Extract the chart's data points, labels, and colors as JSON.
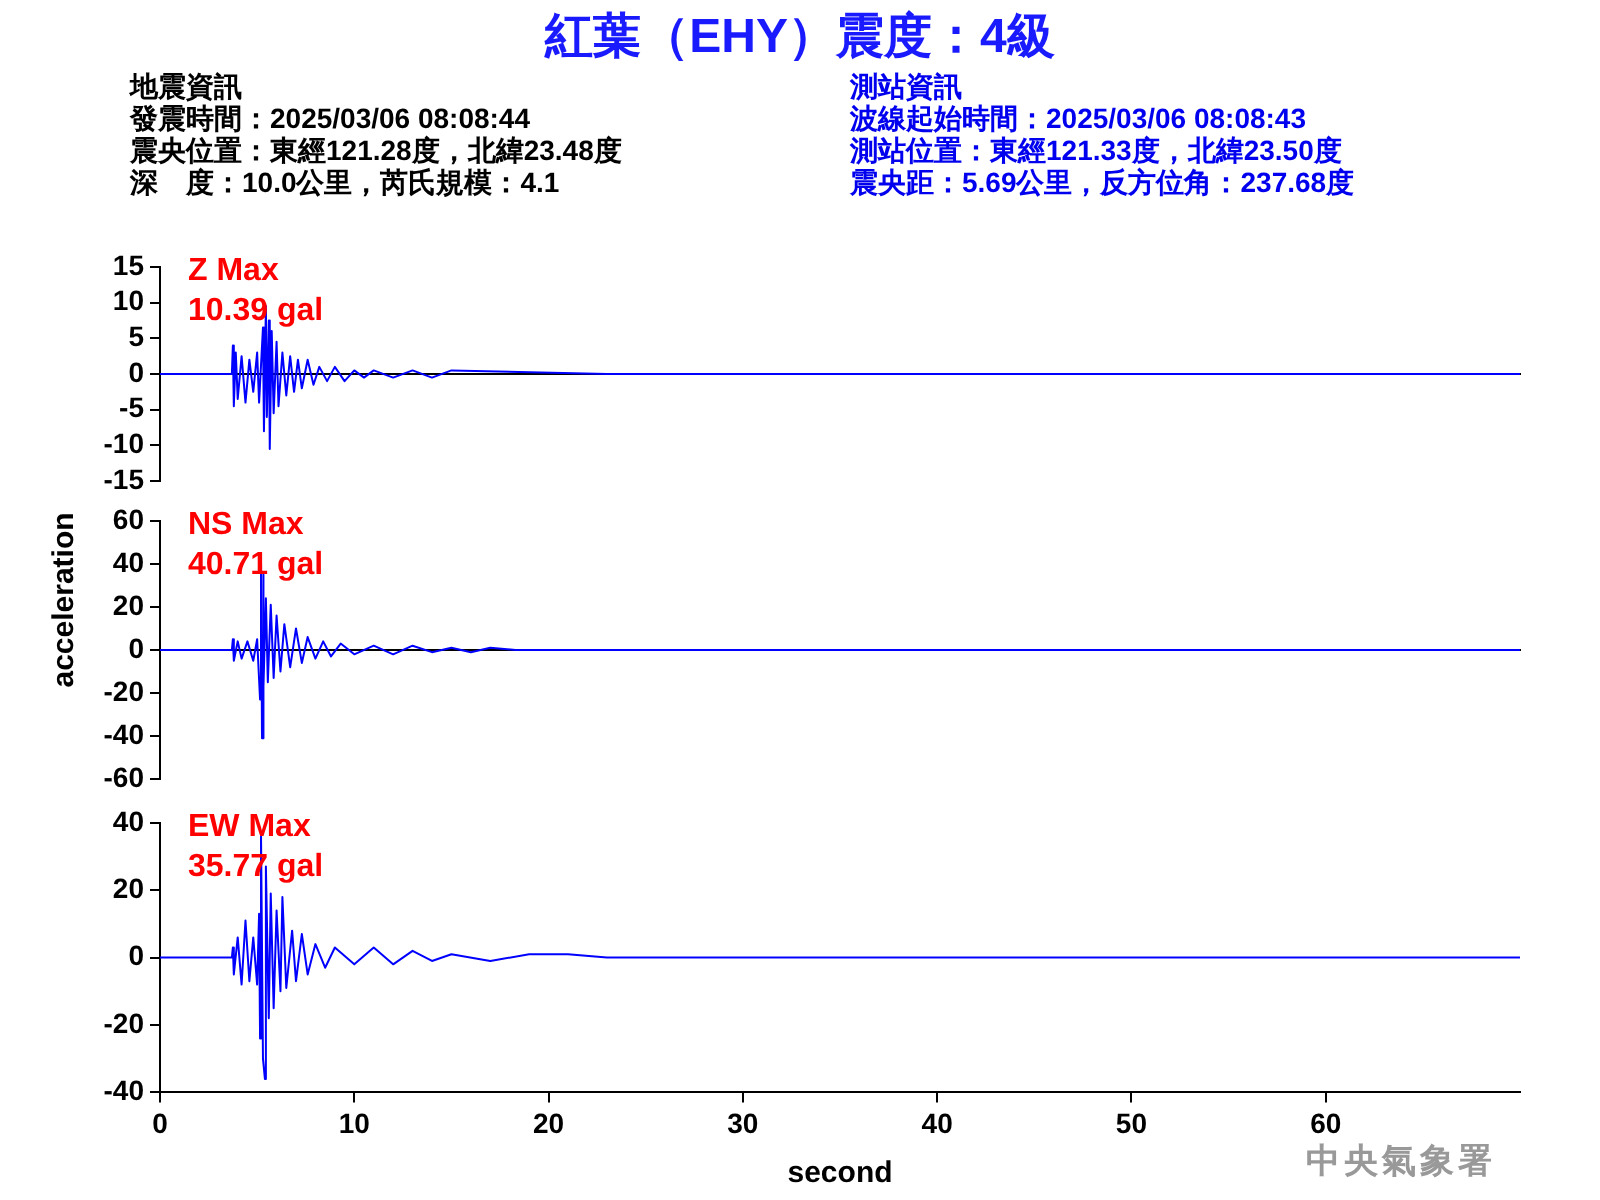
{
  "chart_data": [
    {
      "type": "line",
      "title": "紅葉（EHY）震度：4級",
      "annotations": [
        "Z Max",
        "10.39 gal",
        "地震資訊",
        "發震時間：2025/03/06 08:08:44",
        "震央位置：東經121.28度，北緯23.48度",
        "深　度：10.0公里，芮氏規模：4.1",
        "測站資訊",
        "波線起始時間：2025/03/06 08:08:43",
        "測站位置：東經121.33度，北緯23.50度",
        "震央距：5.69公里，反方位角：237.68度"
      ],
      "xlim": [
        0,
        70
      ],
      "ylim": [
        -15,
        15
      ],
      "yticks": [
        -15,
        -10,
        -5,
        0,
        5,
        10,
        15
      ],
      "tick_labels": "y",
      "marker": "none",
      "line_style": "solid",
      "series": [
        {
          "color": "#0000ff",
          "x": [
            0,
            3.7,
            3.75,
            3.8,
            3.9,
            4.0,
            4.2,
            4.4,
            4.6,
            4.8,
            5.0,
            5.1,
            5.3,
            5.35,
            5.45,
            5.5,
            5.6,
            5.65,
            5.75,
            5.85,
            6.0,
            6.1,
            6.3,
            6.5,
            6.7,
            6.9,
            7.1,
            7.3,
            7.6,
            7.9,
            8.2,
            8.6,
            9.0,
            9.5,
            10,
            10.5,
            11,
            12,
            13,
            14,
            15,
            23,
            70
          ],
          "values": [
            0,
            0,
            4,
            -4.5,
            3,
            -3.5,
            2.5,
            -4,
            2,
            -2.5,
            3,
            -4,
            6.5,
            -8,
            9.5,
            -6,
            7.5,
            -10.5,
            6,
            -5.5,
            4.5,
            -4.5,
            3,
            -3,
            2.5,
            -2.5,
            2,
            -2,
            2,
            -1.5,
            1,
            -1,
            1,
            -1,
            0.5,
            -0.5,
            0.5,
            -0.5,
            0.5,
            -0.5,
            0.5,
            0,
            0
          ]
        }
      ]
    },
    {
      "type": "line",
      "ylabel": "acceleration",
      "annotations": [
        "NS Max",
        "40.71 gal"
      ],
      "xlim": [
        0,
        70
      ],
      "ylim": [
        -60,
        60
      ],
      "yticks": [
        -60,
        -40,
        -20,
        0,
        20,
        40,
        60
      ],
      "tick_labels": "y",
      "marker": "none",
      "line_style": "solid",
      "series": [
        {
          "color": "#0000ff",
          "x": [
            0,
            3.7,
            3.75,
            3.8,
            4.0,
            4.2,
            4.5,
            4.8,
            5.0,
            5.15,
            5.2,
            5.25,
            5.3,
            5.35,
            5.45,
            5.55,
            5.7,
            5.85,
            6.0,
            6.2,
            6.4,
            6.7,
            7.0,
            7.3,
            7.6,
            8.0,
            8.4,
            8.8,
            9.3,
            10,
            11,
            12,
            13,
            14,
            15,
            16,
            17,
            18.3,
            70
          ],
          "values": [
            0,
            0,
            5,
            -5,
            4,
            -4,
            4,
            -5,
            5,
            -23,
            41,
            -41,
            35,
            -17,
            24,
            -15,
            21,
            -13,
            16,
            -10,
            12,
            -8,
            10,
            -6,
            6,
            -4,
            4,
            -3,
            3,
            -2,
            2,
            -2,
            2,
            -1,
            1,
            -1,
            1,
            0,
            0
          ]
        }
      ]
    },
    {
      "type": "line",
      "xlabel": "second",
      "annotations": [
        "EW Max",
        "35.77 gal",
        "中央氣象署"
      ],
      "xlim": [
        0,
        70
      ],
      "xticks": [
        0,
        10,
        20,
        30,
        40,
        50,
        60
      ],
      "ylim": [
        -40,
        40
      ],
      "yticks": [
        -40,
        -20,
        0,
        20,
        40
      ],
      "marker": "none",
      "line_style": "solid",
      "series": [
        {
          "color": "#0000ff",
          "x": [
            0,
            3.7,
            3.75,
            3.8,
            4.0,
            4.2,
            4.4,
            4.6,
            4.8,
            5.0,
            5.1,
            5.15,
            5.2,
            5.3,
            5.4,
            5.45,
            5.6,
            5.7,
            5.85,
            6.0,
            6.2,
            6.3,
            6.5,
            6.8,
            7.0,
            7.3,
            7.6,
            8.0,
            8.5,
            9,
            10,
            11,
            12,
            13,
            14,
            15,
            17,
            19,
            21,
            23,
            70
          ],
          "values": [
            0,
            0,
            3,
            -5,
            6,
            -8,
            11,
            -7,
            6,
            -8,
            13,
            -24,
            36,
            -30,
            -36,
            27,
            -18,
            19,
            -15,
            14,
            -10,
            18,
            -9,
            8,
            -7,
            7,
            -5,
            4,
            -3,
            3,
            -2,
            3,
            -2,
            2,
            -1,
            1,
            -1,
            1,
            1,
            0,
            0
          ]
        }
      ]
    }
  ]
}
